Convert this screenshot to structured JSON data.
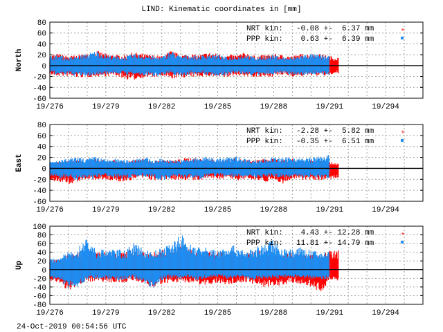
{
  "title": "LIND: Kinematic coordinates in [mm]",
  "timestamp": "24-Oct-2019 00:54:56 UTC",
  "colors": {
    "NRT": "#ff0000",
    "PPP": "#1e8cf0",
    "zero_line": "#000000",
    "grid": "#a0a0a0"
  },
  "chart_data": [
    {
      "type": "scatter",
      "ylabel": "North",
      "ylim": [
        -60,
        80
      ],
      "xlim": [
        276,
        296
      ],
      "yticks": [
        "80",
        "60",
        "40",
        "20",
        "0",
        "-20",
        "-40",
        "-60"
      ],
      "xticks": [
        {
          "value": 276,
          "label": "19/276"
        },
        {
          "value": 279,
          "label": "19/279"
        },
        {
          "value": 282,
          "label": "19/282"
        },
        {
          "value": 285,
          "label": "19/285"
        },
        {
          "value": 288,
          "label": "19/288"
        },
        {
          "value": 291,
          "label": "19/291"
        },
        {
          "value": 294,
          "label": "19/294"
        }
      ],
      "grid": true,
      "legend_position": "top-right",
      "series": [
        {
          "name": "NRT kin:",
          "stats": "-0.08 +-  6.37 mm",
          "marker": "plus",
          "t_start": 276,
          "t_end": 291.5,
          "upper": [
            20,
            22,
            18,
            20,
            22,
            28,
            22,
            20,
            20,
            25,
            22,
            20,
            18,
            28,
            20,
            22,
            20,
            25,
            22,
            20,
            20,
            25,
            18,
            20,
            22,
            20,
            18,
            22,
            22,
            22,
            18,
            15
          ],
          "lower": [
            -18,
            -20,
            -20,
            -22,
            -22,
            -20,
            -20,
            -18,
            -25,
            -27,
            -22,
            -22,
            -20,
            -25,
            -22,
            -22,
            -20,
            -20,
            -22,
            -22,
            -18,
            -20,
            -22,
            -22,
            -20,
            -18,
            -20,
            -20,
            -18,
            -20,
            -18,
            -15
          ]
        },
        {
          "name": "PPP kin:",
          "stats": " 0.63 +-  6.39 mm",
          "marker": "square",
          "t_start": 276,
          "t_end": 291,
          "upper": [
            18,
            20,
            15,
            18,
            22,
            28,
            20,
            18,
            17,
            22,
            20,
            18,
            16,
            28,
            18,
            20,
            18,
            22,
            20,
            16,
            18,
            22,
            15,
            18,
            20,
            16,
            15,
            20,
            22,
            20,
            18
          ],
          "lower": [
            -15,
            -18,
            -17,
            -20,
            -20,
            -18,
            -16,
            -15,
            -17,
            -18,
            -19,
            -20,
            -18,
            -16,
            -20,
            -17,
            -16,
            -18,
            -19,
            -18,
            -15,
            -17,
            -19,
            -18,
            -16,
            -15,
            -17,
            -18,
            -16,
            -17,
            -20
          ]
        }
      ]
    },
    {
      "type": "scatter",
      "ylabel": "East",
      "ylim": [
        -60,
        80
      ],
      "xlim": [
        276,
        296
      ],
      "yticks": [
        "80",
        "60",
        "40",
        "20",
        "0",
        "-20",
        "-40",
        "-60"
      ],
      "xticks": [
        {
          "value": 276,
          "label": "19/276"
        },
        {
          "value": 279,
          "label": "19/279"
        },
        {
          "value": 282,
          "label": "19/282"
        },
        {
          "value": 285,
          "label": "19/285"
        },
        {
          "value": 288,
          "label": "19/288"
        },
        {
          "value": 291,
          "label": "19/291"
        },
        {
          "value": 294,
          "label": "19/294"
        }
      ],
      "grid": true,
      "legend_position": "top-right",
      "series": [
        {
          "name": "NRT kin:",
          "stats": "-2.28 +-  5.82 mm",
          "marker": "plus",
          "t_start": 276,
          "t_end": 291.5,
          "upper": [
            10,
            12,
            15,
            15,
            15,
            18,
            14,
            16,
            13,
            15,
            18,
            12,
            16,
            14,
            18,
            20,
            18,
            18,
            15,
            18,
            18,
            16,
            15,
            18,
            18,
            15,
            18,
            15,
            16,
            18,
            12,
            10
          ],
          "lower": [
            -22,
            -25,
            -30,
            -25,
            -20,
            -22,
            -20,
            -25,
            -25,
            -20,
            -18,
            -22,
            -22,
            -20,
            -22,
            -20,
            -25,
            -18,
            -20,
            -18,
            -22,
            -20,
            -20,
            -25,
            -22,
            -28,
            -20,
            -22,
            -20,
            -22,
            -20,
            -20
          ]
        },
        {
          "name": "PPP kin:",
          "stats": "-0.35 +-  6.51 mm",
          "marker": "square",
          "t_start": 276,
          "t_end": 291,
          "upper": [
            12,
            15,
            18,
            20,
            18,
            22,
            16,
            18,
            15,
            18,
            22,
            15,
            18,
            16,
            15,
            18,
            20,
            22,
            18,
            20,
            22,
            18,
            15,
            18,
            20,
            18,
            22,
            18,
            20,
            22,
            25
          ],
          "lower": [
            -15,
            -18,
            -18,
            -22,
            -20,
            -18,
            -15,
            -18,
            -20,
            -16,
            -15,
            -18,
            -22,
            -18,
            -17,
            -18,
            -20,
            -16,
            -15,
            -15,
            -18,
            -16,
            -17,
            -18,
            -16,
            -17,
            -15,
            -18,
            -16,
            -18,
            -18
          ]
        }
      ]
    },
    {
      "type": "scatter",
      "ylabel": "Up",
      "ylim": [
        -80,
        100
      ],
      "xlim": [
        276,
        296
      ],
      "yticks": [
        "100",
        "80",
        "60",
        "40",
        "20",
        "0",
        "-20",
        "-40",
        "-60",
        "-80"
      ],
      "xticks": [
        {
          "value": 276,
          "label": "19/276"
        },
        {
          "value": 279,
          "label": "19/279"
        },
        {
          "value": 282,
          "label": "19/282"
        },
        {
          "value": 285,
          "label": "19/285"
        },
        {
          "value": 288,
          "label": "19/288"
        },
        {
          "value": 291,
          "label": "19/291"
        },
        {
          "value": 294,
          "label": "19/294"
        }
      ],
      "grid": true,
      "legend_position": "top-right",
      "series": [
        {
          "name": "NRT kin:",
          "stats": " 4.43 +- 12.28 mm",
          "marker": "plus",
          "t_start": 276,
          "t_end": 291.5,
          "upper": [
            20,
            25,
            35,
            40,
            45,
            40,
            42,
            45,
            40,
            50,
            45,
            40,
            45,
            50,
            55,
            48,
            45,
            42,
            40,
            40,
            45,
            40,
            42,
            45,
            40,
            38,
            40,
            35,
            35,
            30,
            45,
            45
          ],
          "lower": [
            -25,
            -30,
            -50,
            -35,
            -30,
            -25,
            -30,
            -30,
            -30,
            -25,
            -35,
            -40,
            -35,
            -30,
            -30,
            -30,
            -40,
            -35,
            -30,
            -35,
            -30,
            -30,
            -35,
            -40,
            -45,
            -35,
            -30,
            -35,
            -40,
            -55,
            -25,
            -25
          ]
        },
        {
          "name": "PPP kin:",
          "stats": "11.81 +- 14.79 mm",
          "marker": "square",
          "t_start": 276,
          "t_end": 291,
          "upper": [
            25,
            30,
            40,
            50,
            78,
            45,
            50,
            48,
            45,
            60,
            50,
            42,
            50,
            60,
            85,
            60,
            55,
            50,
            45,
            58,
            55,
            45,
            50,
            60,
            70,
            50,
            48,
            52,
            45,
            40,
            50
          ],
          "lower": [
            -20,
            -25,
            -45,
            -40,
            -25,
            -20,
            -22,
            -25,
            -25,
            -20,
            -30,
            -45,
            -25,
            -20,
            -22,
            -20,
            -25,
            -20,
            -18,
            -22,
            -20,
            -20,
            -25,
            -20,
            -22,
            -20,
            -18,
            -20,
            -22,
            -25,
            -20
          ]
        }
      ]
    }
  ]
}
